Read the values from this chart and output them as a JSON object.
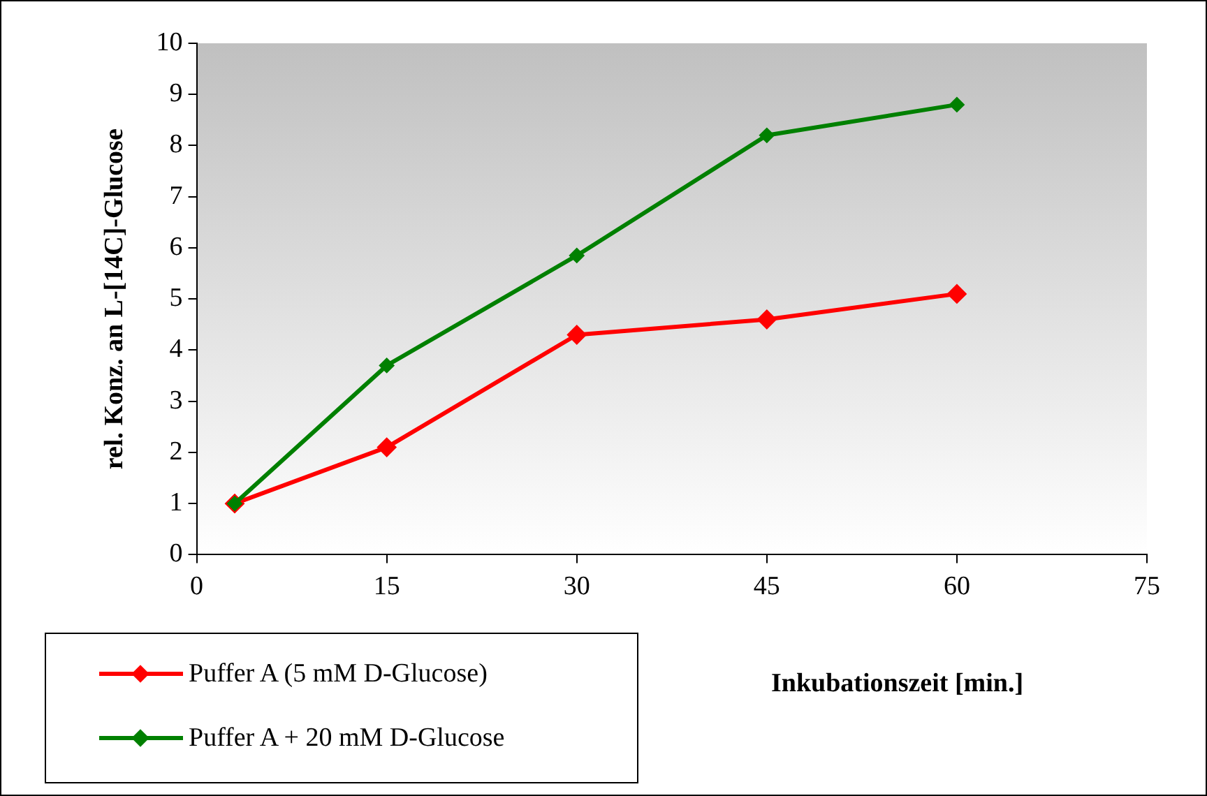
{
  "chart_data": {
    "type": "line",
    "xlabel": "Inkubationszeit [min.]",
    "ylabel": "rel. Konz. an L-[14C]-Glucose",
    "x": [
      3,
      15,
      30,
      45,
      60
    ],
    "series": [
      {
        "name": "Puffer A (5 mM D-Glucose)",
        "color": "#ff0000",
        "values": [
          1,
          2.1,
          4.3,
          4.6,
          5.1
        ]
      },
      {
        "name": "Puffer A + 20 mM D-Glucose",
        "color": "#008000",
        "values": [
          1,
          3.7,
          5.85,
          8.2,
          8.8
        ]
      }
    ],
    "xlim": [
      0,
      75
    ],
    "xticks": [
      0,
      15,
      30,
      45,
      60,
      75
    ],
    "ylim": [
      0,
      10
    ],
    "yticks": [
      0,
      1,
      2,
      3,
      4,
      5,
      6,
      7,
      8,
      9,
      10
    ],
    "legend": "bottom left",
    "marker": "diamond",
    "line_style": "solid"
  }
}
